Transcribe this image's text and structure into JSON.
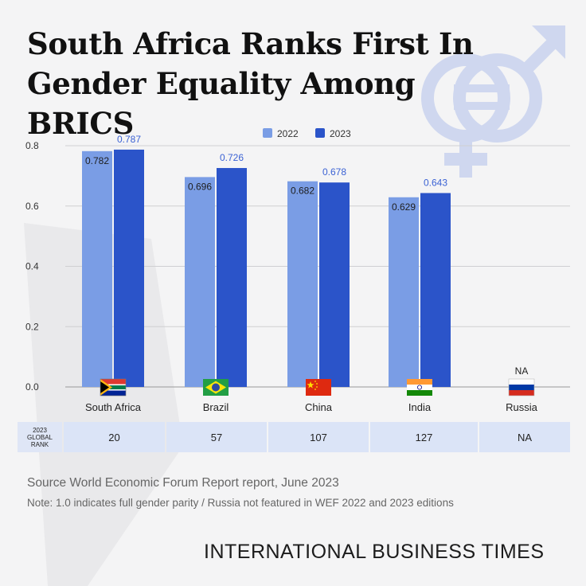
{
  "title_line1": "South Africa Ranks First In",
  "title_line2": "Gender Equality Among BRICS",
  "colors": {
    "series_2022": "#7a9de5",
    "series_2023": "#2b54c9",
    "label_2023": "#3b62d4",
    "symbol": "#cfd7ef"
  },
  "chart_data": {
    "type": "bar",
    "categories": [
      "South Africa",
      "Brazil",
      "China",
      "India",
      "Russia"
    ],
    "series": [
      {
        "name": "2022",
        "values": [
          0.782,
          0.696,
          0.682,
          0.629,
          null
        ]
      },
      {
        "name": "2023",
        "values": [
          0.787,
          0.726,
          0.678,
          0.643,
          null
        ]
      }
    ],
    "missing_labels": [
      "",
      "",
      "",
      "",
      "NA"
    ],
    "value_labels_2022": [
      "0.782",
      "0.696",
      "0.682",
      "0.629",
      ""
    ],
    "value_labels_2023": [
      "0.787",
      "0.726",
      "0.678",
      "0.643",
      ""
    ],
    "y_ticks": [
      0.0,
      0.2,
      0.4,
      0.6,
      0.8
    ],
    "y_tick_labels": [
      "0.0",
      "0.2",
      "0.4",
      "0.6",
      "0.8"
    ],
    "ylim": [
      0,
      0.8
    ],
    "grid": true,
    "legend_position": "top-center",
    "flags": [
      "south-africa-flag",
      "brazil-flag",
      "china-flag",
      "india-flag",
      "russia-flag"
    ]
  },
  "rank_table": {
    "header_line1": "2023",
    "header_line2": "GLOBAL",
    "header_line3": "RANK",
    "values": [
      "20",
      "57",
      "107",
      "127",
      "NA"
    ]
  },
  "source_text": "Source   World Economic Forum Report report, June 2023",
  "note_text": "Note: 1.0 indicates full gender parity / Russia not featured in WEF 2022 and 2023 editions",
  "brand": "INTERNATIONAL BUSINESS TIMES"
}
